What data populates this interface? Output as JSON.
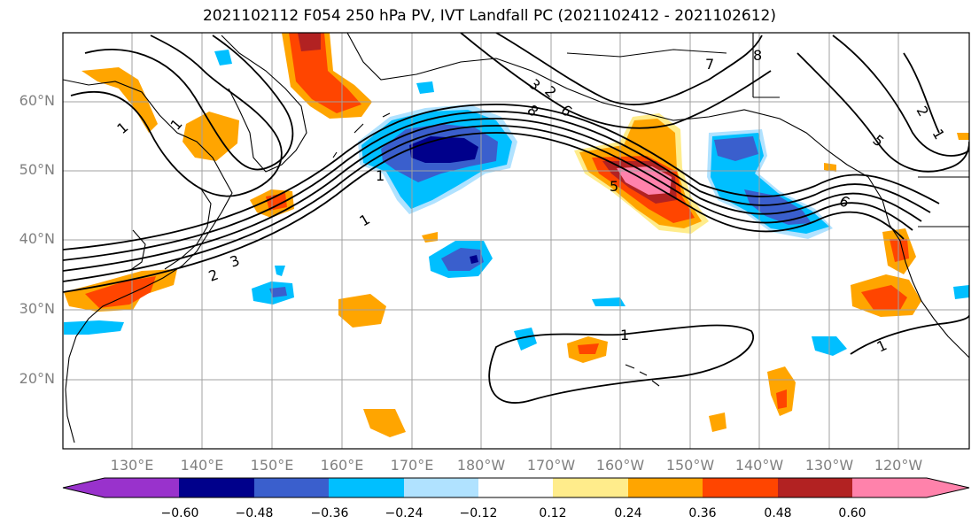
{
  "title": "2021102112 F054 250 hPa PV, IVT Landfall PC (2021102412 - 2021102612)",
  "lat_labels": [
    "60°N",
    "50°N",
    "40°N",
    "30°N",
    "20°N"
  ],
  "lon_labels": [
    "130°E",
    "140°E",
    "150°E",
    "160°E",
    "170°E",
    "180°W",
    "170°W",
    "160°W",
    "150°W",
    "140°W",
    "130°W",
    "120°W"
  ],
  "contour_labels": [
    "1",
    "1",
    "2",
    "3",
    "1",
    "1",
    "3",
    "2",
    "8",
    "6",
    "7",
    "8",
    "5",
    "6",
    "5",
    "1",
    "2",
    "1",
    "1"
  ],
  "colorbar": {
    "ticks": [
      "−0.60",
      "−0.48",
      "−0.36",
      "−0.24",
      "−0.12",
      "0.12",
      "0.24",
      "0.36",
      "0.48",
      "0.60"
    ],
    "colors": [
      "#9932CC",
      "#00008B",
      "#3A5FCD",
      "#00BFFF",
      "#B0E2FF",
      "#FFFFFF",
      "#FFEC8B",
      "#FFA500",
      "#FF4500",
      "#B22222",
      "#FF82AB"
    ]
  },
  "colors": {
    "grid": "#A0A0A0",
    "coast": "#000000",
    "contour": "#000000",
    "axis_label": "#808080"
  }
}
